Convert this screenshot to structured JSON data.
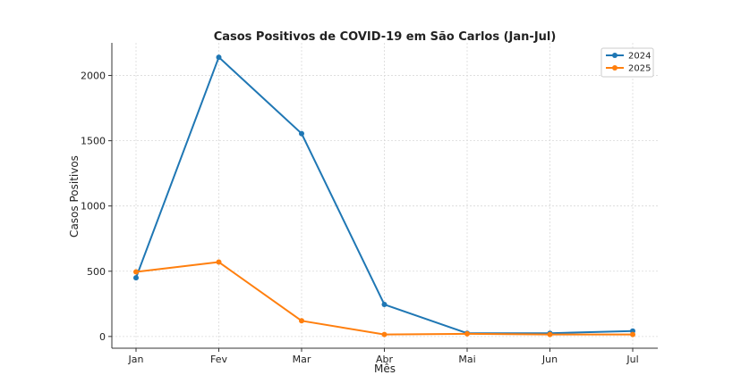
{
  "chart_data": {
    "type": "line",
    "title": "Casos Positivos de COVID-19 em São Carlos (Jan-Jul)",
    "xlabel": "Mês",
    "ylabel": "Casos Positivos",
    "categories": [
      "Jan",
      "Fev",
      "Mar",
      "Abr",
      "Mai",
      "Jun",
      "Jul"
    ],
    "yticks": [
      0,
      500,
      1000,
      1500,
      2000
    ],
    "ylim": [
      -90,
      2250
    ],
    "grid": true,
    "legend_position": "top-right",
    "series": [
      {
        "name": "2024",
        "color": "#1f77b4",
        "values": [
          450,
          2140,
          1555,
          245,
          25,
          25,
          42
        ]
      },
      {
        "name": "2025",
        "color": "#ff7f0e",
        "values": [
          495,
          570,
          120,
          15,
          20,
          15,
          15
        ]
      }
    ]
  }
}
